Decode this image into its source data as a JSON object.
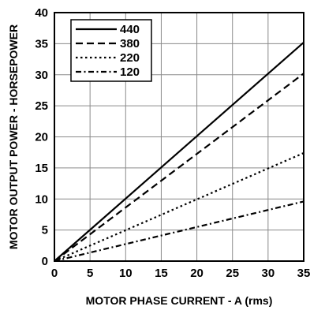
{
  "chart_data": {
    "type": "line",
    "title": "",
    "xlabel": "MOTOR PHASE CURRENT - A (rms)",
    "ylabel": "MOTOR OUTPUT POWER - HORSEPOWER",
    "xlim": [
      0,
      35
    ],
    "ylim": [
      0,
      40
    ],
    "xticks": [
      0,
      5,
      10,
      15,
      20,
      25,
      30,
      35
    ],
    "yticks": [
      0,
      5,
      10,
      15,
      20,
      25,
      30,
      35,
      40
    ],
    "grid": true,
    "legend_position": "top-left",
    "series": [
      {
        "name": "440",
        "style": "solid",
        "x": [
          0,
          35
        ],
        "y": [
          0,
          35.2
        ]
      },
      {
        "name": "380",
        "style": "dashed",
        "x": [
          0,
          35
        ],
        "y": [
          0,
          30.2
        ]
      },
      {
        "name": "220",
        "style": "dotted",
        "x": [
          0,
          35
        ],
        "y": [
          0,
          17.4
        ]
      },
      {
        "name": "120",
        "style": "dash-dot",
        "x": [
          0,
          35
        ],
        "y": [
          0,
          9.6
        ]
      }
    ]
  }
}
